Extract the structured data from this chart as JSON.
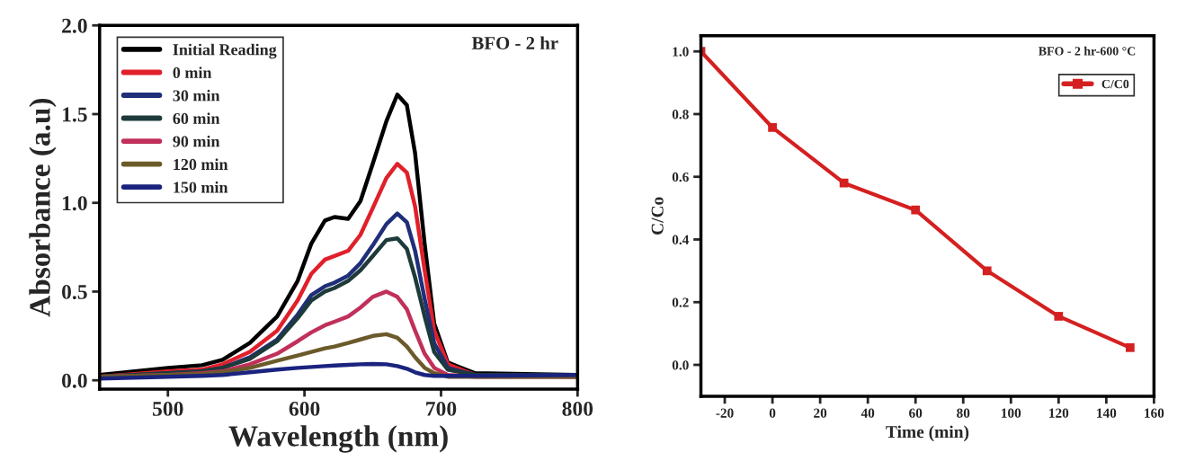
{
  "chart_data": [
    {
      "type": "line",
      "xlabel": "Wavelength (nm)",
      "ylabel": "Absorbance (a.u)",
      "annotations": [
        "BFO - 2 hr"
      ],
      "x": [
        450,
        500,
        525,
        540,
        560,
        580,
        595,
        605,
        615,
        622,
        632,
        641,
        650,
        660,
        668,
        675,
        681,
        688,
        695,
        705,
        725,
        800
      ],
      "series": [
        {
          "name": "Initial Reading",
          "color": "#000000",
          "values": [
            0.03,
            0.07,
            0.085,
            0.115,
            0.21,
            0.36,
            0.56,
            0.77,
            0.9,
            0.92,
            0.91,
            1.01,
            1.22,
            1.46,
            1.61,
            1.55,
            1.28,
            0.77,
            0.32,
            0.1,
            0.04,
            0.03
          ]
        },
        {
          "name": "0 min",
          "color": "#e0202a",
          "values": [
            0.02,
            0.05,
            0.06,
            0.09,
            0.16,
            0.28,
            0.45,
            0.6,
            0.68,
            0.7,
            0.73,
            0.82,
            0.97,
            1.14,
            1.22,
            1.17,
            0.98,
            0.62,
            0.28,
            0.09,
            0.03,
            0.02
          ]
        },
        {
          "name": "30 min",
          "color": "#1f2f7a",
          "values": [
            0.02,
            0.04,
            0.05,
            0.07,
            0.13,
            0.23,
            0.37,
            0.48,
            0.53,
            0.55,
            0.59,
            0.66,
            0.76,
            0.88,
            0.94,
            0.89,
            0.73,
            0.46,
            0.21,
            0.07,
            0.03,
            0.03
          ]
        },
        {
          "name": "60 min",
          "color": "#1e3a3a",
          "values": [
            0.02,
            0.04,
            0.05,
            0.07,
            0.12,
            0.22,
            0.35,
            0.45,
            0.5,
            0.52,
            0.56,
            0.62,
            0.7,
            0.79,
            0.8,
            0.74,
            0.58,
            0.36,
            0.16,
            0.06,
            0.03,
            0.03
          ]
        },
        {
          "name": "90 min",
          "color": "#c0305a",
          "values": [
            0.02,
            0.03,
            0.04,
            0.05,
            0.09,
            0.15,
            0.22,
            0.27,
            0.31,
            0.33,
            0.36,
            0.41,
            0.47,
            0.5,
            0.47,
            0.4,
            0.28,
            0.15,
            0.07,
            0.03,
            0.02,
            0.02
          ]
        },
        {
          "name": "120 min",
          "color": "#6b5a2a",
          "values": [
            0.02,
            0.03,
            0.035,
            0.045,
            0.07,
            0.11,
            0.14,
            0.16,
            0.18,
            0.19,
            0.21,
            0.23,
            0.25,
            0.26,
            0.24,
            0.19,
            0.13,
            0.07,
            0.04,
            0.02,
            0.02,
            0.02
          ]
        },
        {
          "name": "150 min",
          "color": "#1a237e",
          "values": [
            0.01,
            0.02,
            0.025,
            0.03,
            0.045,
            0.06,
            0.07,
            0.075,
            0.08,
            0.083,
            0.087,
            0.09,
            0.092,
            0.09,
            0.08,
            0.065,
            0.045,
            0.03,
            0.025,
            0.025,
            0.025,
            0.03
          ]
        }
      ],
      "xlim": [
        450,
        800
      ],
      "xticks": [
        500,
        600,
        700,
        800
      ],
      "ylim": [
        -0.05,
        2.0
      ],
      "yticks": [
        {
          "value": 0,
          "label": "0.0"
        },
        {
          "value": 0.5,
          "label": "0.5"
        },
        {
          "value": 1,
          "label": "1.0"
        },
        {
          "value": 1.5,
          "label": "1.5"
        },
        {
          "value": 2,
          "label": "2.0"
        }
      ],
      "legend": "top left",
      "grid": false,
      "line_style": "solid",
      "marker": "none"
    },
    {
      "type": "line",
      "xlabel": "Time (min)",
      "ylabel": "C/Co",
      "annotations": [
        "BFO - 2 hr-600 °C"
      ],
      "x": [
        -30,
        0,
        30,
        60,
        90,
        120,
        150
      ],
      "series": [
        {
          "name": "C/C0",
          "color": "#d42020",
          "values": [
            1.0,
            0.757,
            0.58,
            0.494,
            0.3,
            0.155,
            0.055
          ]
        }
      ],
      "xlim": [
        -30,
        160
      ],
      "xticks": [
        -20,
        0,
        20,
        40,
        60,
        80,
        100,
        120,
        140,
        160
      ],
      "ylim": [
        -0.1,
        1.05
      ],
      "yticks": [
        {
          "value": 0,
          "label": "0.0"
        },
        {
          "value": 0.2,
          "label": "0.2"
        },
        {
          "value": 0.4,
          "label": "0.4"
        },
        {
          "value": 0.6,
          "label": "0.6"
        },
        {
          "value": 0.8,
          "label": "0.8"
        },
        {
          "value": 1,
          "label": "1.0"
        }
      ],
      "legend": "top right",
      "grid": false,
      "line_style": "solid",
      "marker": "square"
    }
  ]
}
